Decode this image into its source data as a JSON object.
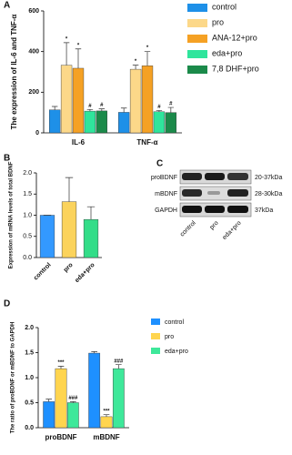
{
  "chart_data": [
    {
      "type": "bar",
      "panel": "A",
      "ylabel": "The expression of IL-6 and TNF-α",
      "categories": [
        "IL-6",
        "TNF-α"
      ],
      "ylim": [
        0,
        600
      ],
      "yticks": [
        0,
        200,
        400,
        600
      ],
      "legend": "right",
      "series": [
        {
          "name": "control",
          "color": "#1e90e8",
          "values": [
            113,
            101
          ],
          "errors": [
            17,
            21
          ]
        },
        {
          "name": "pro",
          "color": "#fcd889",
          "values": [
            333,
            313
          ],
          "errors": [
            111,
            20
          ],
          "annotations": [
            "*",
            "*"
          ]
        },
        {
          "name": "ANA-12+pro",
          "color": "#f5a124",
          "values": [
            318,
            330
          ],
          "errors": [
            95,
            70
          ],
          "annotations": [
            "*",
            "*"
          ]
        },
        {
          "name": "eda+pro",
          "color": "#2fe59c",
          "values": [
            107,
            104
          ],
          "errors": [
            8,
            6
          ],
          "annotations": [
            "#",
            "#"
          ]
        },
        {
          "name": "7,8 DHF+pro",
          "color": "#1b8a4a",
          "values": [
            108,
            100
          ],
          "errors": [
            10,
            25
          ],
          "annotations": [
            "#",
            "#"
          ]
        }
      ]
    },
    {
      "type": "bar",
      "panel": "B",
      "ylabel": "Expression of mRNA levels of total BDNF",
      "categories": [
        "control",
        "pro",
        "eda+pro"
      ],
      "values": [
        1.0,
        1.32,
        0.9
      ],
      "errors": [
        0,
        0.57,
        0.3
      ],
      "colors": [
        "#3399ff",
        "#fbd35c",
        "#33dd88"
      ],
      "ylim": [
        0,
        2
      ],
      "yticks": [
        {
          "value": 0,
          "label": "0.0"
        },
        0.5,
        {
          "value": 1,
          "label": "1.0"
        },
        1.5,
        {
          "value": 2,
          "label": "2.0"
        }
      ]
    },
    {
      "type": "bar",
      "panel": "D",
      "ylabel": "The ratio of proBDNF or mBDNF to GAPDH",
      "categories": [
        "proBDNF",
        "mBDNF"
      ],
      "ylim": [
        0,
        2
      ],
      "yticks": [
        {
          "value": 0,
          "label": "0.0"
        },
        0.5,
        {
          "value": 1,
          "label": "1.0"
        },
        1.5,
        {
          "value": 2,
          "label": "2.0"
        }
      ],
      "legend": "right",
      "series": [
        {
          "name": "control",
          "color": "#1e90ff",
          "values": [
            0.52,
            1.49
          ],
          "errors": [
            0.05,
            0.03
          ]
        },
        {
          "name": "pro",
          "color": "#ffd54f",
          "values": [
            1.18,
            0.22
          ],
          "errors": [
            0.05,
            0.04
          ],
          "annotations": [
            "***",
            "***"
          ]
        },
        {
          "name": "eda+pro",
          "color": "#3ee89a",
          "values": [
            0.5,
            1.18
          ],
          "errors": [
            0.02,
            0.08
          ],
          "annotations": [
            "###",
            "###"
          ]
        }
      ]
    }
  ],
  "blot": {
    "panel": "C",
    "rows": [
      "proBDNF",
      "mBDNF",
      "GAPDH"
    ],
    "sizes": [
      "20-37kDa",
      "28-30kDa",
      "37kDa"
    ],
    "lanes": [
      "control",
      "pro",
      "eda+pro"
    ]
  }
}
